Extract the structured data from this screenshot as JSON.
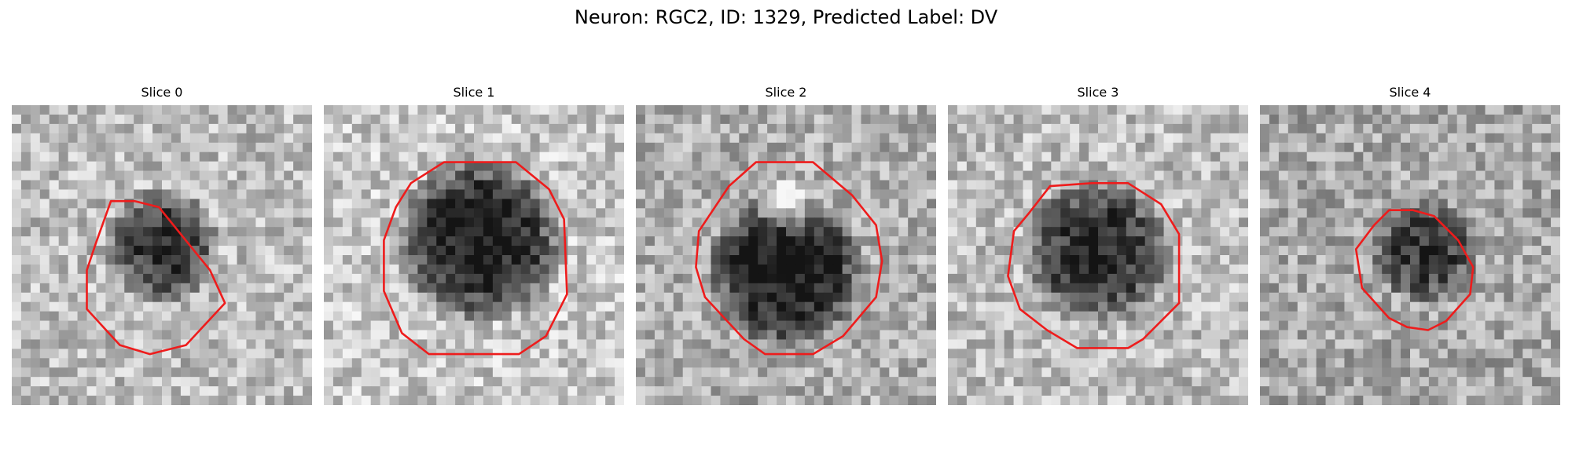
{
  "figure": {
    "title": "Neuron: RGC2, ID: 1329, Predicted Label: DV"
  },
  "colors": {
    "outline": "#ee1c1c",
    "background": "#ffffff"
  },
  "panels": [
    {
      "title": "Slice 0",
      "seed": 11,
      "base_level": 0.74,
      "dark_center": [
        0.5,
        0.47
      ],
      "dark_radius": 0.2,
      "dark_depth": 0.55,
      "bright_center": null,
      "outline": [
        [
          0.33,
          0.32
        ],
        [
          0.41,
          0.32
        ],
        [
          0.49,
          0.34
        ],
        [
          0.66,
          0.55
        ],
        [
          0.71,
          0.66
        ],
        [
          0.58,
          0.8
        ],
        [
          0.5,
          0.82
        ],
        [
          0.46,
          0.83
        ],
        [
          0.36,
          0.8
        ],
        [
          0.25,
          0.68
        ],
        [
          0.25,
          0.55
        ],
        [
          0.28,
          0.46
        ]
      ]
    },
    {
      "title": "Slice 1",
      "seed": 23,
      "base_level": 0.78,
      "dark_center": [
        0.52,
        0.45
      ],
      "dark_radius": 0.29,
      "dark_depth": 0.7,
      "bright_center": null,
      "outline": [
        [
          0.29,
          0.26
        ],
        [
          0.4,
          0.19
        ],
        [
          0.64,
          0.19
        ],
        [
          0.75,
          0.28
        ],
        [
          0.8,
          0.38
        ],
        [
          0.81,
          0.63
        ],
        [
          0.74,
          0.77
        ],
        [
          0.65,
          0.83
        ],
        [
          0.35,
          0.83
        ],
        [
          0.26,
          0.76
        ],
        [
          0.2,
          0.62
        ],
        [
          0.2,
          0.45
        ],
        [
          0.24,
          0.34
        ]
      ]
    },
    {
      "title": "Slice 2",
      "seed": 37,
      "base_level": 0.68,
      "dark_center": [
        0.5,
        0.55
      ],
      "dark_radius": 0.27,
      "dark_depth": 0.62,
      "bright_center": [
        0.5,
        0.34
      ],
      "outline": [
        [
          0.31,
          0.27
        ],
        [
          0.4,
          0.19
        ],
        [
          0.59,
          0.19
        ],
        [
          0.72,
          0.3
        ],
        [
          0.8,
          0.4
        ],
        [
          0.82,
          0.52
        ],
        [
          0.8,
          0.64
        ],
        [
          0.69,
          0.77
        ],
        [
          0.59,
          0.83
        ],
        [
          0.43,
          0.83
        ],
        [
          0.36,
          0.78
        ],
        [
          0.23,
          0.64
        ],
        [
          0.2,
          0.54
        ],
        [
          0.21,
          0.42
        ]
      ]
    },
    {
      "title": "Slice 3",
      "seed": 51,
      "base_level": 0.74,
      "dark_center": [
        0.5,
        0.49
      ],
      "dark_radius": 0.26,
      "dark_depth": 0.58,
      "bright_center": null,
      "outline": [
        [
          0.34,
          0.27
        ],
        [
          0.48,
          0.26
        ],
        [
          0.6,
          0.26
        ],
        [
          0.71,
          0.33
        ],
        [
          0.77,
          0.43
        ],
        [
          0.77,
          0.66
        ],
        [
          0.65,
          0.78
        ],
        [
          0.6,
          0.81
        ],
        [
          0.43,
          0.81
        ],
        [
          0.33,
          0.75
        ],
        [
          0.24,
          0.68
        ],
        [
          0.2,
          0.57
        ],
        [
          0.22,
          0.42
        ],
        [
          0.27,
          0.36
        ]
      ]
    },
    {
      "title": "Slice 4",
      "seed": 67,
      "base_level": 0.66,
      "dark_center": [
        0.55,
        0.49
      ],
      "dark_radius": 0.18,
      "dark_depth": 0.45,
      "bright_center": null,
      "outline": [
        [
          0.43,
          0.35
        ],
        [
          0.51,
          0.35
        ],
        [
          0.58,
          0.37
        ],
        [
          0.66,
          0.45
        ],
        [
          0.71,
          0.54
        ],
        [
          0.7,
          0.63
        ],
        [
          0.62,
          0.72
        ],
        [
          0.56,
          0.75
        ],
        [
          0.49,
          0.74
        ],
        [
          0.43,
          0.71
        ],
        [
          0.34,
          0.61
        ],
        [
          0.32,
          0.48
        ],
        [
          0.38,
          0.4
        ]
      ]
    }
  ]
}
